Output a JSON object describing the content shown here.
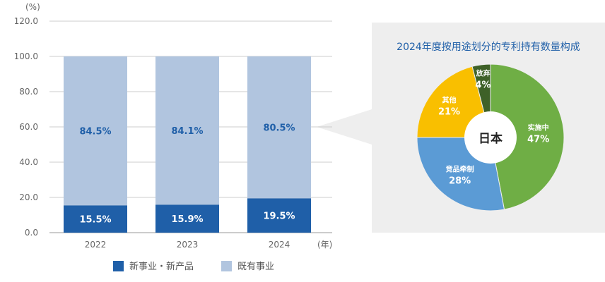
{
  "chart_data": [
    {
      "type": "bar",
      "stacked": true,
      "unit_label": "(%)",
      "x_unit_label": "(年)",
      "categories": [
        "2022",
        "2023",
        "2024"
      ],
      "ylim": [
        0,
        120
      ],
      "yticks": [
        "0.0",
        "20.0",
        "40.0",
        "60.0",
        "80.0",
        "100.0",
        "120.0"
      ],
      "ytick_values": [
        0,
        20,
        40,
        60,
        80,
        100,
        120
      ],
      "grid": true,
      "legend_position": "bottom",
      "series": [
        {
          "name": "新事业・新产品",
          "values": [
            15.5,
            15.9,
            19.5
          ],
          "labels": [
            "15.5%",
            "15.9%",
            "19.5%"
          ],
          "color": "#1f5fa8",
          "label_color": "#ffffff"
        },
        {
          "name": "既有事业",
          "values": [
            84.5,
            84.1,
            80.5
          ],
          "labels": [
            "84.5%",
            "84.1%",
            "80.5%"
          ],
          "color": "#b1c5df",
          "label_color": "#1f5fa8"
        }
      ]
    },
    {
      "type": "pie",
      "title": "2024年度按用途划分的专利持有数量构成",
      "center_label": "日本",
      "slices": [
        {
          "name": "实施中",
          "value": 47,
          "label": "47%",
          "color": "#6fae45"
        },
        {
          "name": "竞品牵制",
          "value": 28,
          "label": "28%",
          "color": "#5b9bd5"
        },
        {
          "name": "其他",
          "value": 21,
          "label": "21%",
          "color": "#f9bf00"
        },
        {
          "name": "放弃",
          "value": 4,
          "label": "4%",
          "color": "#3e6128"
        }
      ]
    }
  ],
  "colors": {
    "panel_bg": "#eeeeee",
    "grid": "#cccccc",
    "axis": "#999999"
  }
}
